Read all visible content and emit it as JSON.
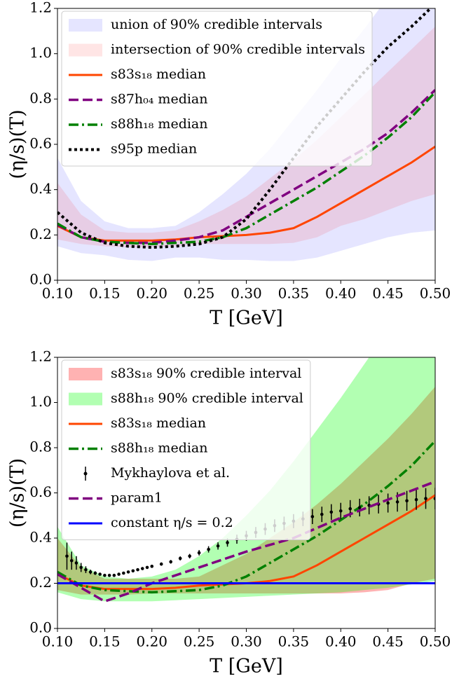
{
  "chart_data": [
    {
      "type": "line",
      "xlabel": "T [GeV]",
      "ylabel": "(η/s)(T)",
      "legend": "upper left",
      "grid": false,
      "xlim": [
        0.1,
        0.5
      ],
      "ylim": [
        0,
        1.2
      ],
      "xticks": [
        {
          "value": 0.1,
          "label": "0.10"
        },
        0.15,
        {
          "value": 0.2,
          "label": "0.20"
        },
        0.25,
        {
          "value": 0.3,
          "label": "0.30"
        },
        0.35,
        {
          "value": 0.4,
          "label": "0.40"
        },
        0.45,
        {
          "value": 0.5,
          "label": "0.50"
        }
      ],
      "yticks": [
        {
          "value": 0,
          "label": "0.0"
        },
        0.2,
        0.4,
        0.6,
        0.8,
        {
          "value": 1,
          "label": "1.0"
        },
        1.2
      ],
      "x": [
        0.1,
        0.125,
        0.15,
        0.175,
        0.2,
        0.225,
        0.25,
        0.275,
        0.3,
        0.325,
        0.35,
        0.375,
        0.4,
        0.425,
        0.45,
        0.475,
        0.5
      ],
      "series": [
        {
          "name": "union of 90% credible intervals",
          "kind": "band",
          "color": "#0000ff",
          "opacity": 0.1,
          "lower": [
            0.15,
            0.12,
            0.11,
            0.09,
            0.085,
            0.1,
            0.1,
            0.09,
            0.09,
            0.085,
            0.085,
            0.1,
            0.13,
            0.16,
            0.19,
            0.21,
            0.22
          ],
          "upper": [
            0.54,
            0.35,
            0.26,
            0.23,
            0.23,
            0.24,
            0.3,
            0.38,
            0.47,
            0.58,
            0.71,
            0.84,
            0.98,
            1.11,
            1.25,
            1.35,
            1.45
          ]
        },
        {
          "name": "intersection of 90% credible intervals",
          "kind": "band",
          "color": "#ff0000",
          "opacity": 0.1,
          "lower": [
            0.18,
            0.16,
            0.15,
            0.145,
            0.145,
            0.15,
            0.16,
            0.16,
            0.16,
            0.16,
            0.165,
            0.19,
            0.24,
            0.27,
            0.31,
            0.35,
            0.38
          ],
          "upper": [
            0.43,
            0.29,
            0.22,
            0.21,
            0.21,
            0.22,
            0.26,
            0.31,
            0.37,
            0.45,
            0.53,
            0.62,
            0.72,
            0.82,
            0.92,
            1.02,
            1.12
          ]
        },
        {
          "name": "s83s₁₈ median",
          "kind": "line",
          "linestyle": "solid",
          "color": "#ff4500",
          "values": [
            0.24,
            0.19,
            0.175,
            0.175,
            0.175,
            0.18,
            0.19,
            0.195,
            0.2,
            0.21,
            0.23,
            0.28,
            0.34,
            0.4,
            0.46,
            0.52,
            0.59
          ]
        },
        {
          "name": "s87h₀₄ median",
          "kind": "line",
          "linestyle": "dashed",
          "color": "#800080",
          "values": [
            0.245,
            0.19,
            0.17,
            0.165,
            0.165,
            0.175,
            0.19,
            0.22,
            0.28,
            0.34,
            0.4,
            0.46,
            0.52,
            0.58,
            0.65,
            0.74,
            0.84
          ]
        },
        {
          "name": "s88h₁₈ median",
          "kind": "line",
          "linestyle": "dashdot",
          "color": "#008000",
          "values": [
            0.25,
            0.19,
            0.17,
            0.165,
            0.16,
            0.165,
            0.17,
            0.19,
            0.23,
            0.29,
            0.35,
            0.41,
            0.48,
            0.55,
            0.63,
            0.72,
            0.83
          ]
        },
        {
          "name": "s95p median",
          "kind": "line",
          "linestyle": "dotted",
          "color": "#000000",
          "values": [
            0.3,
            0.21,
            0.165,
            0.15,
            0.145,
            0.15,
            0.16,
            0.19,
            0.27,
            0.4,
            0.54,
            0.68,
            0.8,
            0.92,
            1.03,
            1.12,
            1.22
          ]
        }
      ]
    },
    {
      "type": "line",
      "xlabel": "T [GeV]",
      "ylabel": "(η/s)(T)",
      "legend": "upper left",
      "grid": false,
      "xlim": [
        0.1,
        0.5
      ],
      "ylim": [
        0,
        1.2
      ],
      "xticks": [
        {
          "value": 0.1,
          "label": "0.10"
        },
        0.15,
        {
          "value": 0.2,
          "label": "0.20"
        },
        0.25,
        {
          "value": 0.3,
          "label": "0.30"
        },
        0.35,
        {
          "value": 0.4,
          "label": "0.40"
        },
        0.45,
        {
          "value": 0.5,
          "label": "0.50"
        }
      ],
      "yticks": [
        {
          "value": 0,
          "label": "0.0"
        },
        0.2,
        0.4,
        0.6,
        0.8,
        {
          "value": 1,
          "label": "1.0"
        },
        1.2
      ],
      "x": [
        0.1,
        0.125,
        0.15,
        0.175,
        0.2,
        0.225,
        0.25,
        0.275,
        0.3,
        0.325,
        0.35,
        0.375,
        0.4,
        0.425,
        0.45,
        0.475,
        0.5
      ],
      "series": [
        {
          "name": "s83s₁₈ 90% credible interval",
          "kind": "band",
          "color": "#ff0000",
          "opacity": 0.3,
          "lower": [
            0.17,
            0.15,
            0.15,
            0.15,
            0.155,
            0.155,
            0.155,
            0.155,
            0.155,
            0.155,
            0.155,
            0.155,
            0.155,
            0.16,
            0.17,
            0.2,
            0.22
          ],
          "upper": [
            0.4,
            0.27,
            0.22,
            0.22,
            0.22,
            0.22,
            0.23,
            0.28,
            0.33,
            0.4,
            0.47,
            0.55,
            0.64,
            0.74,
            0.84,
            0.95,
            1.07
          ]
        },
        {
          "name": "s88h₁₈ 90% credible interval",
          "kind": "band",
          "color": "#00ff00",
          "opacity": 0.3,
          "lower": [
            0.16,
            0.13,
            0.12,
            0.12,
            0.12,
            0.125,
            0.13,
            0.135,
            0.14,
            0.145,
            0.15,
            0.155,
            0.16,
            0.17,
            0.18,
            0.195,
            0.21
          ],
          "upper": [
            0.45,
            0.28,
            0.23,
            0.22,
            0.23,
            0.26,
            0.32,
            0.4,
            0.5,
            0.61,
            0.74,
            0.88,
            1.02,
            1.17,
            1.32,
            1.45,
            1.6
          ]
        },
        {
          "name": "s83s₁₈ median",
          "kind": "line",
          "linestyle": "solid",
          "color": "#ff4500",
          "values": [
            0.24,
            0.19,
            0.175,
            0.175,
            0.175,
            0.18,
            0.19,
            0.195,
            0.2,
            0.21,
            0.23,
            0.28,
            0.34,
            0.4,
            0.46,
            0.52,
            0.59
          ]
        },
        {
          "name": "s88h₁₈ median",
          "kind": "line",
          "linestyle": "dashdot",
          "color": "#008000",
          "values": [
            0.25,
            0.19,
            0.17,
            0.165,
            0.16,
            0.165,
            0.17,
            0.19,
            0.23,
            0.29,
            0.35,
            0.41,
            0.48,
            0.55,
            0.63,
            0.72,
            0.83
          ]
        },
        {
          "name": "Mykhaylova et al.",
          "kind": "errorbar",
          "color": "#000000",
          "x": [
            0.11,
            0.115,
            0.12,
            0.125,
            0.13,
            0.135,
            0.14,
            0.145,
            0.15,
            0.155,
            0.16,
            0.165,
            0.17,
            0.175,
            0.18,
            0.185,
            0.19,
            0.195,
            0.2,
            0.21,
            0.22,
            0.23,
            0.24,
            0.25,
            0.26,
            0.27,
            0.28,
            0.29,
            0.3,
            0.31,
            0.32,
            0.33,
            0.34,
            0.35,
            0.36,
            0.37,
            0.38,
            0.39,
            0.4,
            0.41,
            0.42,
            0.43,
            0.44,
            0.45,
            0.46,
            0.47,
            0.48,
            0.49,
            0.5
          ],
          "values": [
            0.32,
            0.3,
            0.29,
            0.27,
            0.26,
            0.25,
            0.245,
            0.24,
            0.235,
            0.235,
            0.235,
            0.24,
            0.245,
            0.25,
            0.255,
            0.26,
            0.265,
            0.27,
            0.275,
            0.285,
            0.295,
            0.31,
            0.32,
            0.335,
            0.35,
            0.365,
            0.38,
            0.395,
            0.41,
            0.425,
            0.44,
            0.455,
            0.465,
            0.475,
            0.485,
            0.495,
            0.505,
            0.515,
            0.52,
            0.53,
            0.535,
            0.545,
            0.55,
            0.555,
            0.56,
            0.565,
            0.57,
            0.575,
            0.575
          ],
          "errors": [
            0.06,
            0.04,
            0.03,
            0.02,
            0.015,
            0.01,
            0.008,
            0.006,
            0.005,
            0.005,
            0.005,
            0.005,
            0.005,
            0.005,
            0.005,
            0.005,
            0.005,
            0.005,
            0.006,
            0.007,
            0.008,
            0.009,
            0.01,
            0.012,
            0.014,
            0.016,
            0.018,
            0.02,
            0.022,
            0.024,
            0.026,
            0.028,
            0.03,
            0.031,
            0.032,
            0.033,
            0.034,
            0.035,
            0.036,
            0.038,
            0.039,
            0.04,
            0.041,
            0.042,
            0.043,
            0.044,
            0.045,
            0.046,
            0.048
          ]
        },
        {
          "name": "param1",
          "kind": "line",
          "linestyle": "dashed",
          "color": "#800080",
          "values": [
            0.24,
            0.18,
            0.12,
            0.155,
            0.2,
            0.235,
            0.27,
            0.305,
            0.34,
            0.37,
            0.4,
            0.445,
            0.49,
            0.53,
            0.57,
            0.61,
            0.65
          ]
        },
        {
          "name": "constant η/s = 0.2",
          "kind": "line",
          "linestyle": "solid",
          "color": "#0000ff",
          "values": [
            0.2,
            0.2,
            0.2,
            0.2,
            0.2,
            0.2,
            0.2,
            0.2,
            0.2,
            0.2,
            0.2,
            0.2,
            0.2,
            0.2,
            0.2,
            0.2,
            0.2
          ]
        }
      ]
    }
  ]
}
